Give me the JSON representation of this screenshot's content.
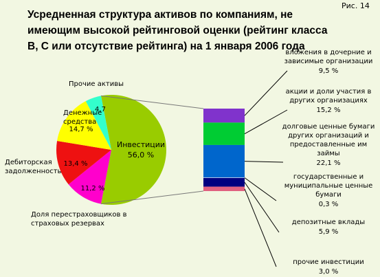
{
  "chart_data": [
    {
      "type": "pie",
      "figure_label": "Рис. 14",
      "title": "Усредненная структура активов по компаниям, не имеющим высокой рейтинговой оценки (рейтинг класса В, С или отсутствие рейтинга) на 1 января 2006 года",
      "categories": [
        "Инвестиции",
        "Доля перестраховщиков в страховых резервах",
        "Дебиторская задолженность",
        "Денежные средства",
        "Прочие активы"
      ],
      "values": [
        56.0,
        11.2,
        13.4,
        14.7,
        4.7
      ],
      "value_labels": [
        "56,0 %",
        "11,2 %",
        "13,4 %",
        "14,7 %",
        "4,7"
      ],
      "colors": [
        "#99cc00",
        "#ff00cc",
        "#ee1111",
        "#ffff00",
        "#33ffcc"
      ]
    },
    {
      "type": "bar",
      "categories": [
        "вложения в дочерние и зависимые организации",
        "акции и доли участия в других организациях",
        "долговые ценные бумаги других организаций и предоставленные им займы",
        "государственные и муниципальные ценные бумаги",
        "депозитные вклады",
        "прочие инвестиции"
      ],
      "values": [
        9.5,
        15.2,
        22.1,
        0.3,
        5.9,
        3.0
      ],
      "value_labels": [
        "9,5 %",
        "15,2 %",
        "22,1 %",
        "0,3 %",
        "5,9 %",
        "3,0 %"
      ],
      "colors": [
        "#8033cc",
        "#00cc33",
        "#0066cc",
        "#e8e8ff",
        "#000080",
        "#e06080"
      ]
    }
  ]
}
